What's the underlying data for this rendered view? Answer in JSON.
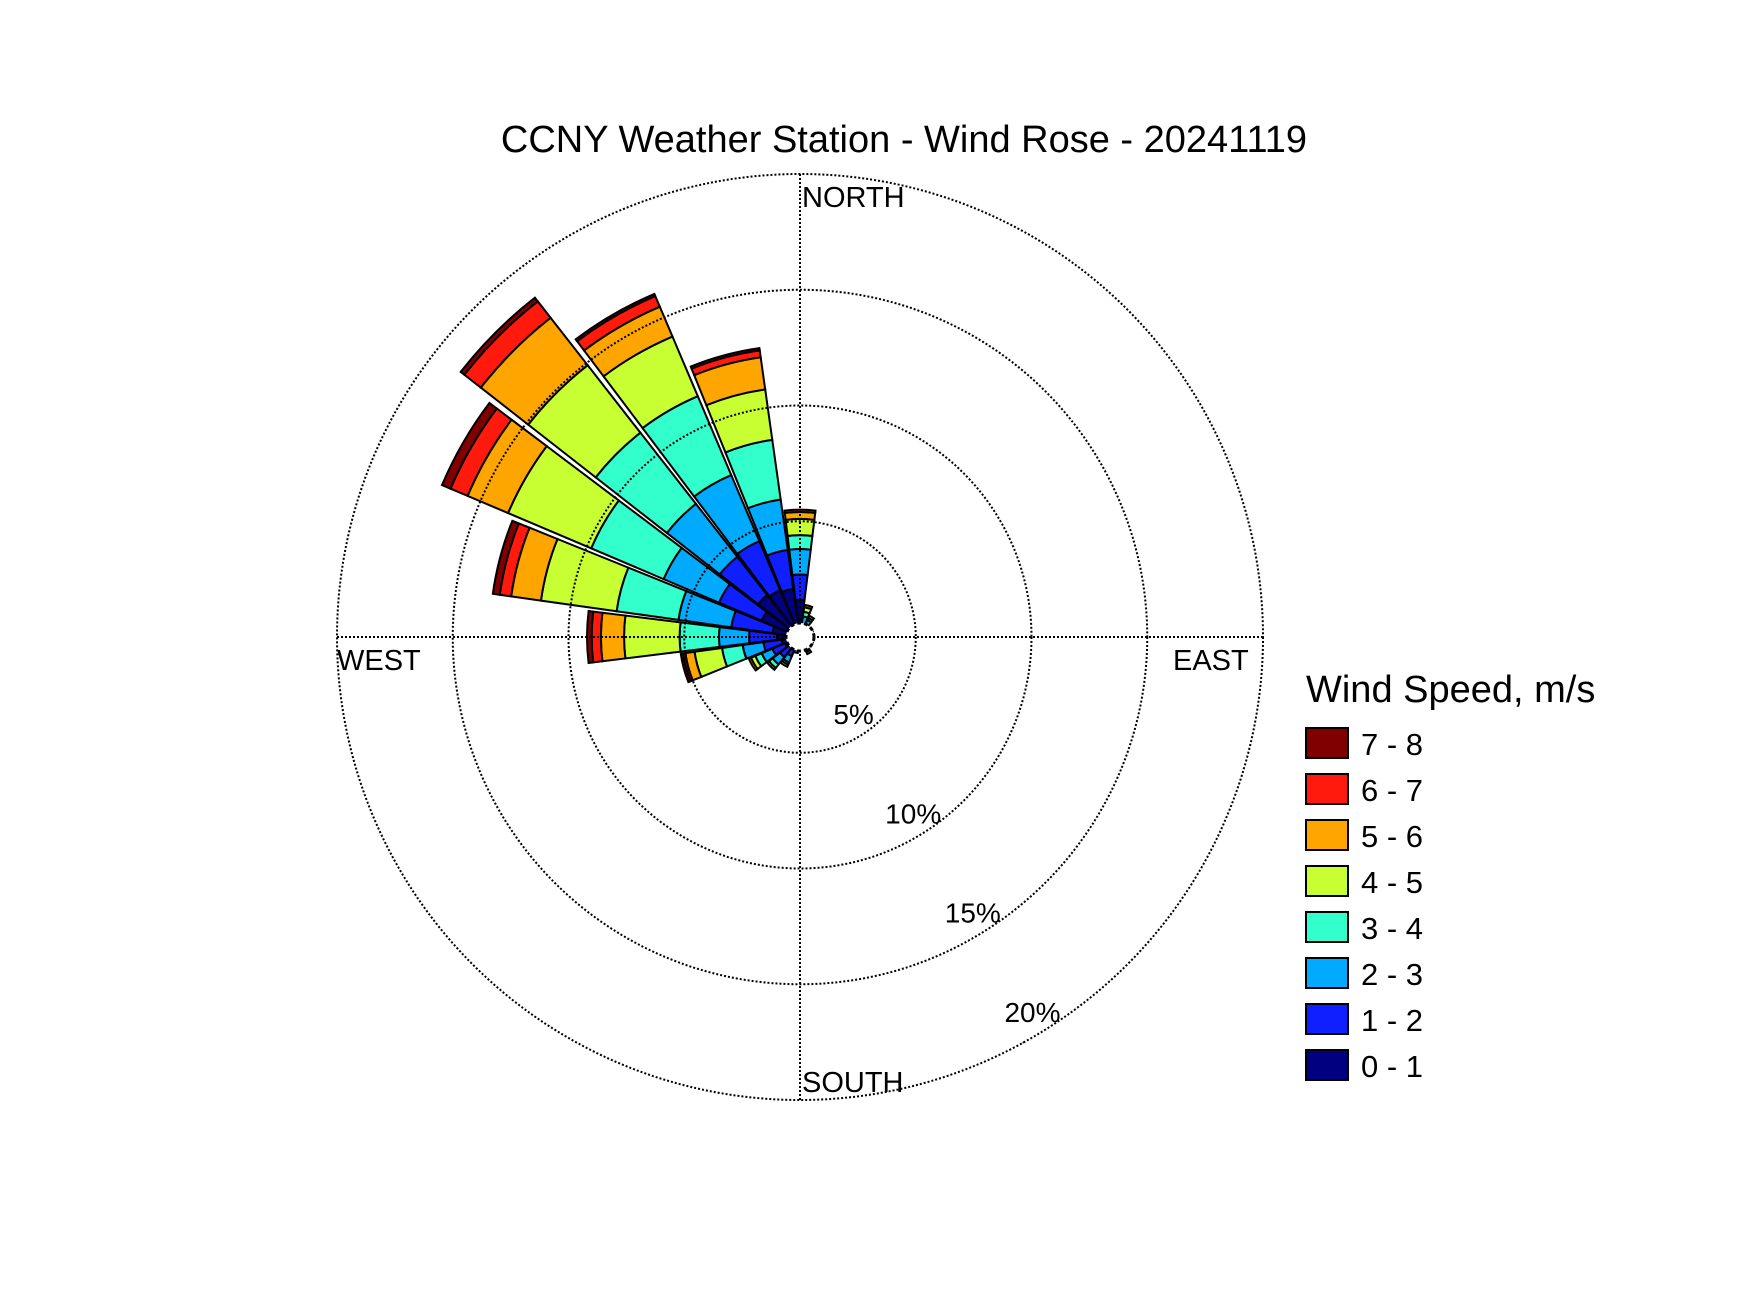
{
  "chart_data": {
    "type": "polar-bar",
    "title": "CCNY Weather Station - Wind Rose - 20241119",
    "directions": {
      "north": "NORTH",
      "east": "EAST",
      "south": "SOUTH",
      "west": "WEST"
    },
    "rings": [
      {
        "value": 5,
        "label": "5%"
      },
      {
        "value": 10,
        "label": "10%"
      },
      {
        "value": 15,
        "label": "15%"
      },
      {
        "value": 20,
        "label": "20%"
      }
    ],
    "rmax": 20,
    "legend": {
      "title": "Wind Speed, m/s",
      "bins": [
        {
          "label": "7 - 8",
          "color": "#800000"
        },
        {
          "label": "6 - 7",
          "color": "#ff1a0d"
        },
        {
          "label": "5 - 6",
          "color": "#ffa500"
        },
        {
          "label": "4 - 5",
          "color": "#c8ff33"
        },
        {
          "label": "3 - 4",
          "color": "#33ffcc"
        },
        {
          "label": "2 - 3",
          "color": "#00aaff"
        },
        {
          "label": "1 - 2",
          "color": "#0f1fff"
        },
        {
          "label": "0 - 1",
          "color": "#000080"
        }
      ]
    },
    "bin_order": [
      "0 - 1",
      "1 - 2",
      "2 - 3",
      "3 - 4",
      "4 - 5",
      "5 - 6",
      "6 - 7",
      "7 - 8"
    ],
    "sectors": [
      {
        "direction_deg": 15,
        "cumulative_percent": [
          0.3,
          0.5,
          0.9,
          1.1,
          1.3,
          1.4,
          1.4,
          1.4
        ]
      },
      {
        "direction_deg": 30,
        "cumulative_percent": [
          0.3,
          0.5,
          0.8,
          0.9,
          1.0,
          1.0,
          1.0,
          1.0
        ]
      },
      {
        "direction_deg": 60,
        "cumulative_percent": [
          0.3,
          0.4,
          0.5,
          0.6,
          0.6,
          0.6,
          0.6,
          0.6
        ]
      },
      {
        "direction_deg": 120,
        "cumulative_percent": [
          0.2,
          0.4,
          0.5,
          0.6,
          0.6,
          0.6,
          0.6,
          0.6
        ]
      },
      {
        "direction_deg": 150,
        "cumulative_percent": [
          0.2,
          0.4,
          0.6,
          0.7,
          0.8,
          0.8,
          0.8,
          0.8
        ]
      },
      {
        "direction_deg": 195,
        "cumulative_percent": [
          0.2,
          0.4,
          0.6,
          0.7,
          0.7,
          0.7,
          0.7,
          0.7
        ]
      },
      {
        "direction_deg": 210,
        "cumulative_percent": [
          0.5,
          0.9,
          1.2,
          1.3,
          1.4,
          1.4,
          1.4,
          1.4
        ]
      },
      {
        "direction_deg": 225,
        "cumulative_percent": [
          0.6,
          1.1,
          1.5,
          1.7,
          1.8,
          1.8,
          1.8,
          1.8
        ]
      },
      {
        "direction_deg": 240,
        "cumulative_percent": [
          0.7,
          1.3,
          1.8,
          2.1,
          2.3,
          2.4,
          2.4,
          2.4
        ]
      },
      {
        "direction_deg": 255,
        "cumulative_percent": [
          0.8,
          1.6,
          2.5,
          3.4,
          4.6,
          5.0,
          5.1,
          5.2
        ]
      },
      {
        "direction_deg": 270,
        "cumulative_percent": [
          1.0,
          2.2,
          3.5,
          5.2,
          7.6,
          8.6,
          9.0,
          9.2
        ]
      },
      {
        "direction_deg": 285,
        "cumulative_percent": [
          1.2,
          3.0,
          5.3,
          8.0,
          11.3,
          12.6,
          13.1,
          13.4
        ]
      },
      {
        "direction_deg": 300,
        "cumulative_percent": [
          1.8,
          3.8,
          6.4,
          9.8,
          13.7,
          15.6,
          16.4,
          16.8
        ]
      },
      {
        "direction_deg": 315,
        "cumulative_percent": [
          2.3,
          4.4,
          7.3,
          11.2,
          14.9,
          17.5,
          18.4,
          18.6
        ]
      },
      {
        "direction_deg": 330,
        "cumulative_percent": [
          2.2,
          4.5,
          7.6,
          11.3,
          14.1,
          15.5,
          16.0,
          16.1
        ]
      },
      {
        "direction_deg": 345,
        "cumulative_percent": [
          2.1,
          3.8,
          6.0,
          8.6,
          10.8,
          12.2,
          12.5,
          12.6
        ]
      },
      {
        "direction_deg": 360,
        "cumulative_percent": [
          1.6,
          2.7,
          3.8,
          4.4,
          5.1,
          5.4,
          5.5,
          5.5
        ]
      }
    ]
  }
}
